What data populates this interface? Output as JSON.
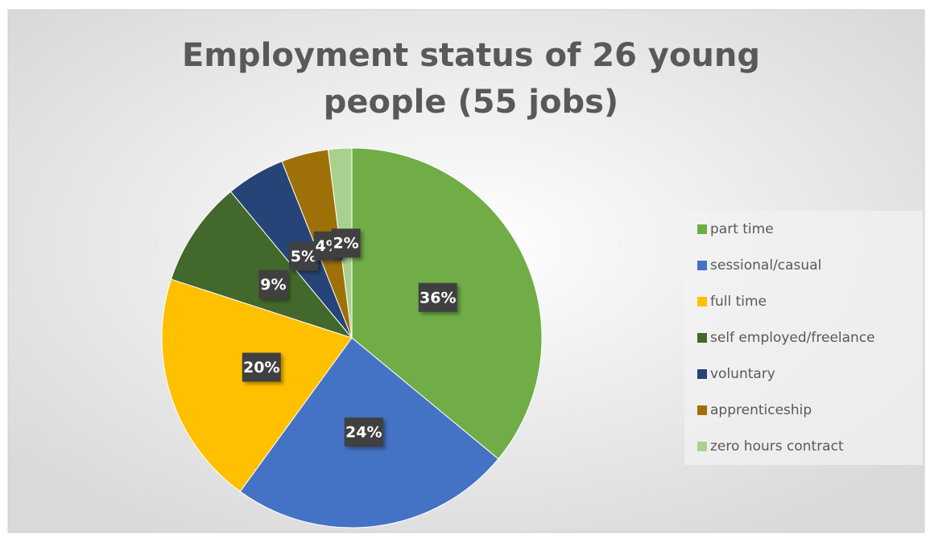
{
  "chart_data": {
    "type": "pie",
    "title": "Employment status of 26 young people (55 jobs)",
    "categories": [
      "part time",
      "sessional/casual",
      "full time",
      "self employed/freelance",
      "voluntary",
      "apprenticeship",
      "zero hours contract"
    ],
    "values": [
      36,
      24,
      20,
      9,
      5,
      4,
      2
    ],
    "value_labels": [
      "36%",
      "24%",
      "20%",
      "9%",
      "5%",
      "4%",
      "2%"
    ],
    "colors": [
      "#70ad47",
      "#4472c4",
      "#ffc000",
      "#43682b",
      "#264478",
      "#9e7008",
      "#a9d18e"
    ],
    "legend": "right"
  }
}
